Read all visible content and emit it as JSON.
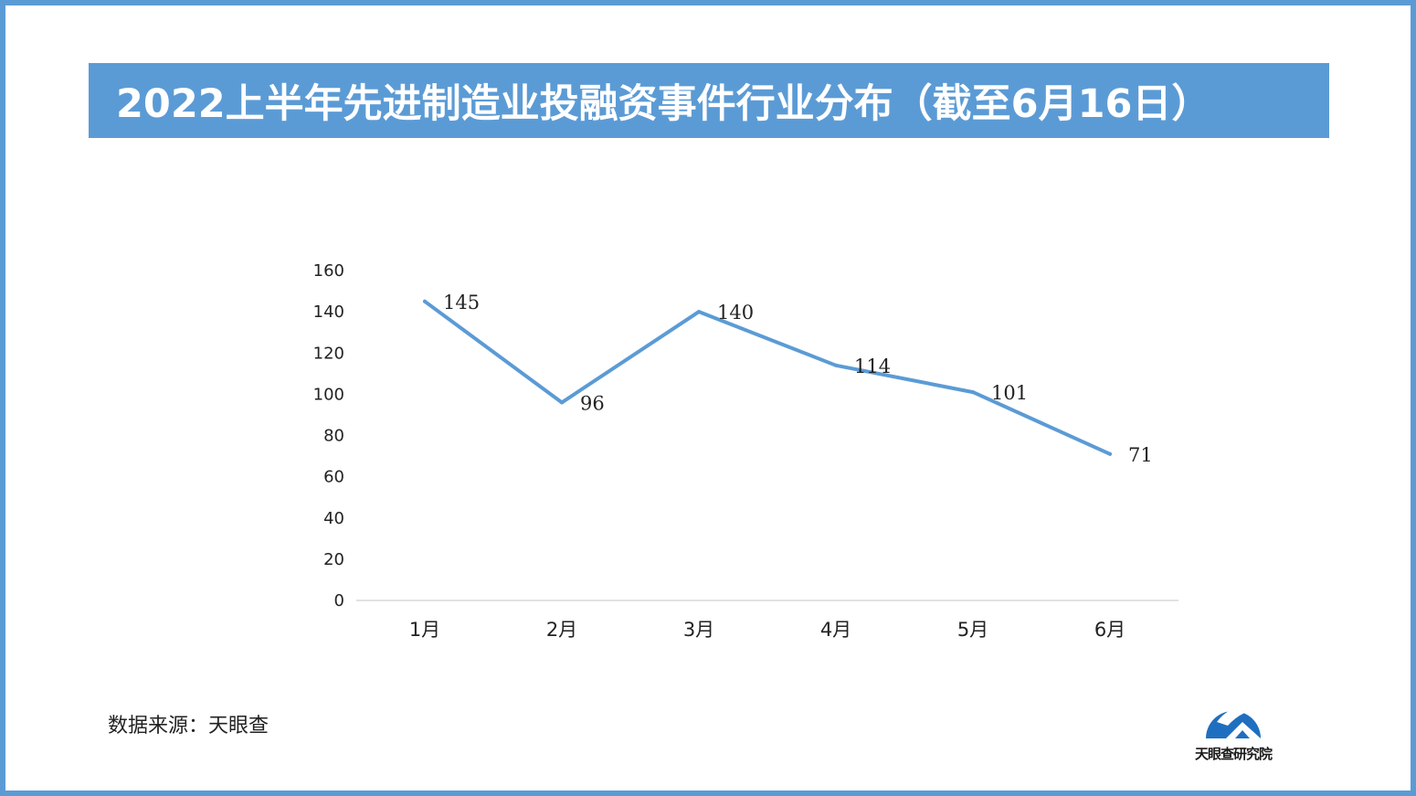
{
  "title": "2022上半年先进制造业投融资事件行业分布（截至6月16日）",
  "source_label": "数据来源：天眼查",
  "logo": {
    "icon": "tianyancha-research-logo-icon",
    "text": "天眼查研究院"
  },
  "colors": {
    "accent": "#5b9bd5",
    "axis": "#d9d9d9",
    "text": "#222222"
  },
  "chart_data": {
    "type": "line",
    "title": "",
    "xlabel": "",
    "ylabel": "",
    "categories": [
      "1月",
      "2月",
      "3月",
      "4月",
      "5月",
      "6月"
    ],
    "series": [
      {
        "values": [
          145,
          96,
          140,
          114,
          101,
          71
        ]
      }
    ],
    "data_labels": [
      "145",
      "96",
      "140",
      "114",
      "101",
      "71"
    ],
    "ylim": [
      0,
      160
    ],
    "yticks": [
      "0",
      "20",
      "40",
      "60",
      "80",
      "100",
      "120",
      "140",
      "160"
    ],
    "grid": false,
    "legend": "none",
    "line_color": "#5b9bd5"
  }
}
